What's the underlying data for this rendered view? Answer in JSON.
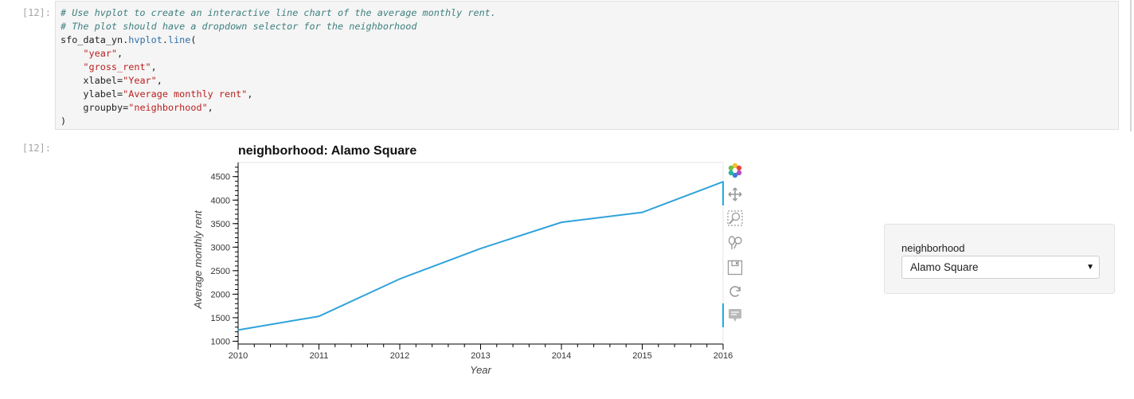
{
  "code_cell": {
    "prompt": "[12]:",
    "lines": [
      [
        {
          "t": "# Use hvplot to create an interactive line chart of the average monthly rent.",
          "c": "c-comment"
        }
      ],
      [
        {
          "t": "# The plot should have a dropdown selector for the neighborhood",
          "c": "c-comment"
        }
      ],
      [
        {
          "t": "sfo_data_yn.",
          "c": ""
        },
        {
          "t": "hvplot",
          "c": "c-attr"
        },
        {
          "t": ".",
          "c": ""
        },
        {
          "t": "line",
          "c": "c-attr"
        },
        {
          "t": "(",
          "c": ""
        }
      ],
      [
        {
          "t": "    ",
          "c": ""
        },
        {
          "t": "\"year\"",
          "c": "c-str"
        },
        {
          "t": ",",
          "c": ""
        }
      ],
      [
        {
          "t": "    ",
          "c": ""
        },
        {
          "t": "\"gross_rent\"",
          "c": "c-str"
        },
        {
          "t": ",",
          "c": ""
        }
      ],
      [
        {
          "t": "    xlabel=",
          "c": ""
        },
        {
          "t": "\"Year\"",
          "c": "c-str"
        },
        {
          "t": ",",
          "c": ""
        }
      ],
      [
        {
          "t": "    ylabel=",
          "c": ""
        },
        {
          "t": "\"Average monthly rent\"",
          "c": "c-str"
        },
        {
          "t": ",",
          "c": ""
        }
      ],
      [
        {
          "t": "    groupby=",
          "c": ""
        },
        {
          "t": "\"neighborhood\"",
          "c": "c-str"
        },
        {
          "t": ",",
          "c": ""
        }
      ],
      [
        {
          "t": ")",
          "c": ""
        }
      ]
    ]
  },
  "output_cell": {
    "prompt": "[12]:"
  },
  "chart_data": {
    "type": "line",
    "title": "neighborhood: Alamo Square",
    "xlabel": "Year",
    "ylabel": "Average monthly rent",
    "x": [
      2010,
      2011,
      2012,
      2013,
      2014,
      2015,
      2016
    ],
    "series": [
      {
        "values": [
          1239,
          1530,
          2324,
          2971,
          3528,
          3739,
          4390
        ],
        "color": "#30a2da"
      }
    ],
    "xlim": [
      2010,
      2016
    ],
    "ylim": [
      940,
      4800
    ],
    "x_ticks": [
      2010,
      2011,
      2012,
      2013,
      2014,
      2015,
      2016
    ],
    "y_ticks": [
      1000,
      1500,
      2000,
      2500,
      3000,
      3500,
      4000,
      4500
    ],
    "grid": false,
    "legend": "none"
  },
  "toolbar": {
    "tools": [
      "bokeh-logo-icon",
      "pan-icon",
      "box-zoom-icon",
      "wheel-zoom-icon",
      "save-icon",
      "reset-icon",
      "hover-icon"
    ],
    "accent": "#26aae1"
  },
  "widget": {
    "label": "neighborhood",
    "selected": "Alamo Square"
  }
}
